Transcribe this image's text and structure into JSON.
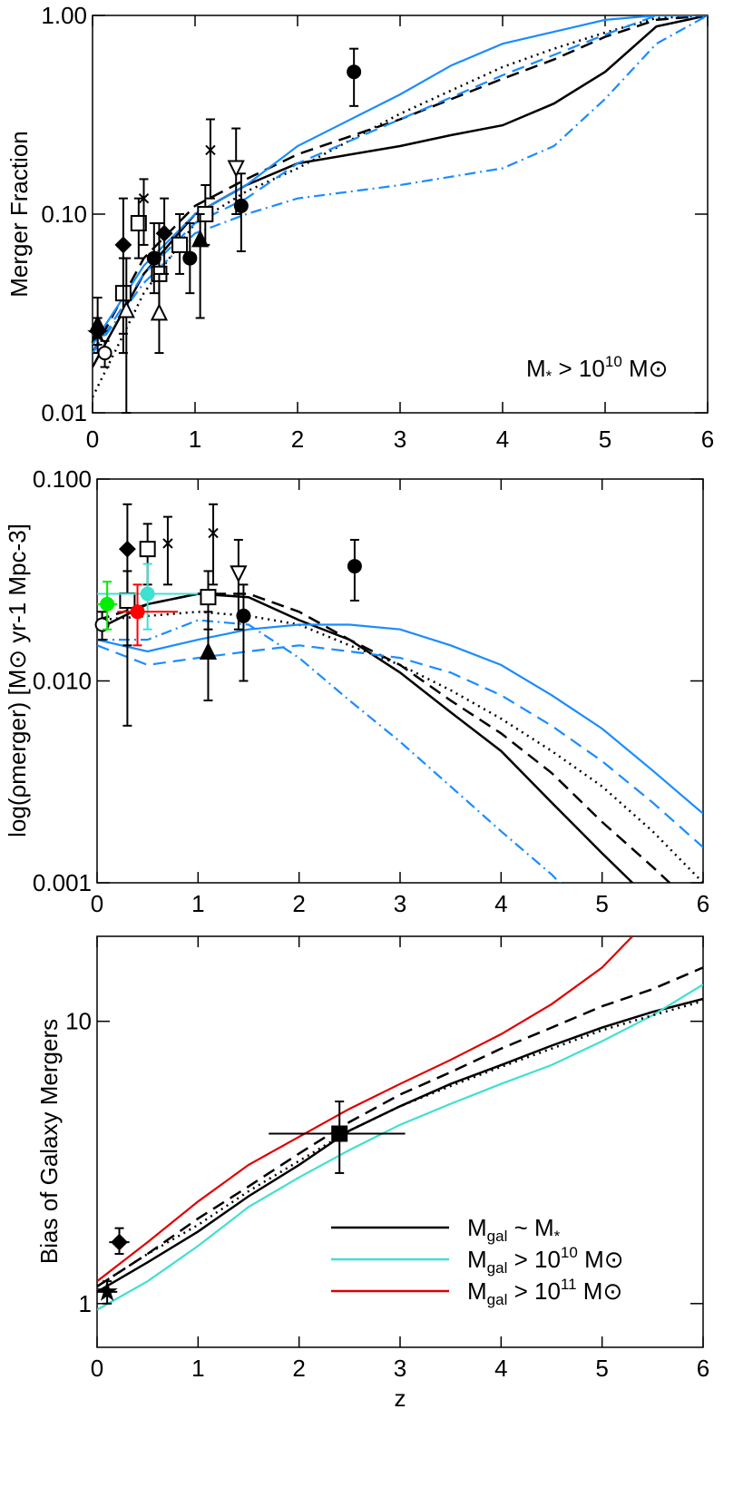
{
  "chart_data": [
    {
      "type": "line",
      "ylabel": "Merger Fraction",
      "log_y": true,
      "xlim": [
        0,
        6
      ],
      "xticks": [
        0,
        1,
        2,
        3,
        4,
        5,
        6
      ],
      "ylim": [
        0.01,
        1
      ],
      "yticks": [
        {
          "value": 1,
          "label": "1.00"
        },
        {
          "value": 0.1,
          "label": "0.10"
        },
        0.01
      ],
      "annotation": [
        "M",
        "*",
        " > 10",
        "10",
        " M",
        "⊙"
      ],
      "series": [
        {
          "color": "#000000",
          "style": "solid",
          "x": [
            0,
            0.5,
            1,
            1.5,
            2,
            3,
            3.5,
            4,
            4.5,
            5,
            5.5,
            6
          ],
          "values": [
            0.017,
            0.05,
            0.1,
            0.14,
            0.18,
            0.22,
            0.25,
            0.28,
            0.36,
            0.52,
            0.88,
            1.0
          ]
        },
        {
          "color": "#000000",
          "style": "dashed",
          "x": [
            0,
            0.5,
            1,
            1.5,
            2,
            3,
            4,
            4.5,
            5,
            5.5,
            6
          ],
          "values": [
            0.02,
            0.06,
            0.11,
            0.15,
            0.2,
            0.3,
            0.48,
            0.6,
            0.78,
            0.95,
            1.0
          ]
        },
        {
          "color": "#000000",
          "style": "dotted",
          "x": [
            0,
            0.5,
            1,
            1.5,
            2,
            3,
            4,
            4.5,
            5,
            5.5,
            6
          ],
          "values": [
            0.012,
            0.04,
            0.09,
            0.13,
            0.17,
            0.32,
            0.55,
            0.68,
            0.82,
            0.97,
            1.0
          ]
        },
        {
          "color": "#1a8cff",
          "style": "solid",
          "x": [
            0,
            0.5,
            1,
            1.5,
            2,
            3,
            3.5,
            4,
            5,
            5.5,
            6
          ],
          "values": [
            0.022,
            0.055,
            0.1,
            0.14,
            0.22,
            0.4,
            0.56,
            0.72,
            0.95,
            1.0,
            1.0
          ]
        },
        {
          "color": "#1a8cff",
          "style": "dashed",
          "x": [
            0,
            0.5,
            1,
            1.5,
            2,
            3,
            4,
            5,
            5.5,
            6
          ],
          "values": [
            0.02,
            0.05,
            0.09,
            0.12,
            0.18,
            0.3,
            0.5,
            0.8,
            1.0,
            1.0
          ]
        },
        {
          "color": "#1a8cff",
          "style": "dashdot",
          "x": [
            0,
            0.5,
            1,
            1.5,
            2,
            3,
            4,
            4.5,
            5,
            5.5,
            6
          ],
          "values": [
            0.02,
            0.045,
            0.08,
            0.1,
            0.12,
            0.14,
            0.17,
            0.22,
            0.38,
            0.72,
            1.0
          ]
        }
      ],
      "points": [
        {
          "x": 2.55,
          "y": 0.52,
          "ylo": 0.35,
          "yhi": 0.68,
          "marker": "filled-circle"
        },
        {
          "x": 1.45,
          "y": 0.11,
          "ylo": 0.065,
          "yhi": 0.16,
          "marker": "filled-circle"
        },
        {
          "x": 1.4,
          "y": 0.17,
          "ylo": 0.1,
          "yhi": 0.27,
          "marker": "down-triangle"
        },
        {
          "x": 1.15,
          "y": 0.21,
          "ylo": 0.12,
          "yhi": 0.3,
          "marker": "x"
        },
        {
          "x": 1.1,
          "y": 0.1,
          "ylo": 0.07,
          "yhi": 0.14,
          "marker": "square"
        },
        {
          "x": 1.05,
          "y": 0.075,
          "ylo": 0.03,
          "yhi": 0.1,
          "marker": "filled-triangle"
        },
        {
          "x": 0.95,
          "y": 0.06,
          "ylo": 0.04,
          "yhi": 0.09,
          "marker": "filled-circle"
        },
        {
          "x": 0.85,
          "y": 0.07,
          "ylo": 0.05,
          "yhi": 0.1,
          "marker": "square"
        },
        {
          "x": 0.65,
          "y": 0.05,
          "ylo": 0.03,
          "yhi": 0.09,
          "marker": "square"
        },
        {
          "x": 0.6,
          "y": 0.06,
          "ylo": 0.04,
          "yhi": 0.09,
          "marker": "filled-circle"
        },
        {
          "x": 0.45,
          "y": 0.09,
          "ylo": 0.06,
          "yhi": 0.12,
          "marker": "square"
        },
        {
          "x": 0.3,
          "y": 0.04,
          "ylo": 0.025,
          "yhi": 0.06,
          "marker": "square"
        },
        {
          "x": 0.3,
          "y": 0.07,
          "ylo": 0.02,
          "yhi": 0.12,
          "marker": "filled-diamond"
        },
        {
          "x": 0.33,
          "y": 0.033,
          "ylo": 0.01,
          "yhi": 0.06,
          "marker": "triangle"
        },
        {
          "x": 0.65,
          "y": 0.032,
          "ylo": 0.02,
          "yhi": 0.05,
          "marker": "triangle"
        },
        {
          "x": 0.7,
          "y": 0.08,
          "ylo": 0.05,
          "yhi": 0.12,
          "marker": "filled-diamond"
        },
        {
          "x": 0.5,
          "y": 0.12,
          "ylo": 0.07,
          "yhi": 0.15,
          "marker": "x"
        },
        {
          "x": 0.05,
          "y": 0.028,
          "ylo": 0.022,
          "yhi": 0.038,
          "marker": "filled-triangle"
        },
        {
          "x": 0.05,
          "y": 0.025,
          "ylo": 0.02,
          "yhi": 0.03,
          "marker": "star"
        },
        {
          "x": 0.12,
          "y": 0.02,
          "ylo": 0.017,
          "yhi": 0.023,
          "marker": "circle"
        }
      ]
    },
    {
      "type": "line",
      "ylabel": "log(ρmerger) [M⊙ yr-1 Mpc-3]",
      "log_y": true,
      "xlim": [
        0,
        6
      ],
      "xticks": [
        0,
        1,
        2,
        3,
        4,
        5,
        6
      ],
      "ylim": [
        0.001,
        0.1
      ],
      "yticks": [
        {
          "value": 0.1,
          "label": "0.100"
        },
        {
          "value": 0.01,
          "label": "0.010"
        },
        0.001
      ],
      "series": [
        {
          "color": "#000000",
          "style": "solid",
          "x": [
            0,
            0.5,
            1,
            1.5,
            2,
            2.5,
            3,
            3.5,
            4,
            4.5,
            5,
            5.5
          ],
          "values": [
            0.018,
            0.024,
            0.027,
            0.026,
            0.02,
            0.016,
            0.011,
            0.007,
            0.0045,
            0.0025,
            0.0014,
            0.0008
          ]
        },
        {
          "color": "#000000",
          "style": "dashed",
          "x": [
            0,
            0.5,
            1,
            1.5,
            2,
            2.5,
            3,
            3.5,
            4,
            4.5,
            5,
            5.5,
            6
          ],
          "values": [
            0.02,
            0.024,
            0.027,
            0.027,
            0.022,
            0.016,
            0.012,
            0.008,
            0.0055,
            0.0035,
            0.002,
            0.0012,
            0.0007
          ]
        },
        {
          "color": "#000000",
          "style": "dotted",
          "x": [
            0,
            1,
            1.5,
            2,
            2.5,
            3,
            3.5,
            4,
            4.5,
            5,
            5.5,
            6
          ],
          "values": [
            0.02,
            0.022,
            0.021,
            0.019,
            0.015,
            0.012,
            0.009,
            0.0065,
            0.0045,
            0.003,
            0.0018,
            0.001
          ]
        },
        {
          "color": "#1a8cff",
          "style": "solid",
          "x": [
            0,
            0.5,
            1,
            1.5,
            2,
            2.5,
            3,
            3.5,
            4,
            4.5,
            5,
            5.5,
            6
          ],
          "values": [
            0.016,
            0.014,
            0.016,
            0.018,
            0.019,
            0.019,
            0.018,
            0.015,
            0.012,
            0.0085,
            0.0058,
            0.0036,
            0.0022
          ]
        },
        {
          "color": "#1a8cff",
          "style": "dashed",
          "x": [
            0,
            0.5,
            1,
            1.5,
            2,
            2.5,
            3,
            3.5,
            4,
            4.5,
            5,
            5.5,
            6
          ],
          "values": [
            0.015,
            0.012,
            0.013,
            0.014,
            0.015,
            0.014,
            0.013,
            0.011,
            0.0085,
            0.006,
            0.004,
            0.0025,
            0.0015
          ]
        },
        {
          "color": "#1a8cff",
          "style": "dashdot",
          "x": [
            0,
            0.5,
            1,
            1.5,
            2,
            2.5,
            3,
            3.5,
            4,
            4.5,
            5
          ],
          "values": [
            0.016,
            0.016,
            0.02,
            0.019,
            0.013,
            0.008,
            0.005,
            0.003,
            0.0018,
            0.0011,
            0.0006
          ]
        }
      ],
      "points": [
        {
          "x": 2.55,
          "y": 0.037,
          "ylo": 0.025,
          "yhi": 0.05,
          "marker": "filled-circle"
        },
        {
          "x": 1.45,
          "y": 0.021,
          "ylo": 0.01,
          "yhi": 0.03,
          "marker": "filled-circle"
        },
        {
          "x": 1.4,
          "y": 0.034,
          "ylo": 0.018,
          "yhi": 0.05,
          "marker": "down-triangle"
        },
        {
          "x": 1.15,
          "y": 0.054,
          "ylo": 0.03,
          "yhi": 0.075,
          "marker": "x"
        },
        {
          "x": 1.1,
          "y": 0.026,
          "ylo": 0.018,
          "yhi": 0.035,
          "marker": "square"
        },
        {
          "x": 1.1,
          "y": 0.014,
          "ylo": 0.008,
          "yhi": 0.022,
          "marker": "filled-triangle"
        },
        {
          "x": 0.5,
          "y": 0.045,
          "ylo": 0.03,
          "yhi": 0.06,
          "marker": "square"
        },
        {
          "x": 0.3,
          "y": 0.045,
          "ylo": 0.006,
          "yhi": 0.075,
          "marker": "filled-diamond"
        },
        {
          "x": 0.7,
          "y": 0.048,
          "ylo": 0.03,
          "yhi": 0.065,
          "marker": "x"
        },
        {
          "x": 0.3,
          "y": 0.025,
          "ylo": 0.015,
          "yhi": 0.035,
          "marker": "square"
        },
        {
          "x": 0.05,
          "y": 0.019,
          "ylo": 0.016,
          "yhi": 0.022,
          "marker": "circle"
        },
        {
          "x": 0.5,
          "y": 0.027,
          "ylo": 0.018,
          "yhi": 0.038,
          "xlo": 0,
          "xhi": 1,
          "marker": "filled-circle",
          "color": "#40e0d0"
        },
        {
          "x": 0.1,
          "y": 0.024,
          "ylo": 0.018,
          "yhi": 0.031,
          "xlo": 0,
          "xhi": 0.2,
          "marker": "filled-circle",
          "color": "#00ee00"
        },
        {
          "x": 0.4,
          "y": 0.022,
          "ylo": 0.015,
          "yhi": 0.03,
          "xlo": 0.2,
          "xhi": 0.8,
          "marker": "filled-circle",
          "color": "#ff0000"
        }
      ]
    },
    {
      "type": "line",
      "ylabel": "Bias of Galaxy Mergers",
      "xlabel": "z",
      "log_y": true,
      "xlim": [
        0,
        6
      ],
      "xticks": [
        0,
        1,
        2,
        3,
        4,
        5,
        6
      ],
      "ylim": [
        0.7,
        20
      ],
      "yticks": [
        1,
        10
      ],
      "series": [
        {
          "name": [
            "M",
            "gal",
            " ~ M",
            "*"
          ],
          "color": "#000000",
          "style": "solid",
          "x": [
            0,
            0.5,
            1,
            1.5,
            2,
            2.5,
            3,
            3.5,
            4,
            4.5,
            5,
            5.5,
            6
          ],
          "values": [
            1.1,
            1.4,
            1.8,
            2.4,
            3.1,
            4.1,
            5,
            6,
            7,
            8.2,
            9.5,
            10.8,
            12
          ]
        },
        {
          "name": [
            "M",
            "gal",
            " > 10",
            "10",
            " M",
            "⊙"
          ],
          "color": "#40e0d0",
          "style": "solid",
          "x": [
            0,
            0.5,
            1,
            1.5,
            2,
            2.5,
            3,
            3.5,
            4,
            4.5,
            5,
            5.5,
            6
          ],
          "values": [
            0.95,
            1.2,
            1.6,
            2.2,
            2.8,
            3.5,
            4.3,
            5.1,
            6,
            7,
            8.5,
            10.5,
            13.5
          ]
        },
        {
          "name": [
            "M",
            "gal",
            " > 10",
            "11",
            " M",
            "⊙"
          ],
          "color": "#e00000",
          "style": "solid",
          "x": [
            0,
            0.5,
            1,
            1.5,
            2,
            2.5,
            3,
            3.5,
            4,
            4.5,
            5,
            5.3
          ],
          "values": [
            1.2,
            1.65,
            2.3,
            3.1,
            3.9,
            4.9,
            6,
            7.3,
            9,
            11.5,
            15.5,
            20
          ]
        },
        {
          "color": "#000000",
          "style": "dashed",
          "x": [
            0,
            0.5,
            1,
            1.5,
            2,
            2.5,
            3,
            3.5,
            4,
            4.5,
            5,
            5.5,
            6
          ],
          "values": [
            1.15,
            1.5,
            2,
            2.6,
            3.4,
            4.4,
            5.5,
            6.6,
            8,
            9.5,
            11.3,
            13,
            15.5
          ]
        },
        {
          "color": "#000000",
          "style": "dotted",
          "x": [
            0,
            0.5,
            1,
            1.5,
            2,
            2.5,
            3,
            3.5,
            4,
            4.5,
            5,
            5.5,
            6
          ],
          "values": [
            1.15,
            1.5,
            1.9,
            2.5,
            3.2,
            4.1,
            5,
            5.9,
            6.9,
            8,
            9.3,
            10.5,
            11.8
          ]
        }
      ],
      "points": [
        {
          "x": 2.4,
          "y": 4.0,
          "ylo": 2.9,
          "yhi": 5.2,
          "xlo": 1.7,
          "xhi": 3.05,
          "marker": "filled-square"
        },
        {
          "x": 0.22,
          "y": 1.65,
          "ylo": 1.5,
          "yhi": 1.85,
          "xlo": 0.12,
          "xhi": 0.32,
          "marker": "filled-diamond"
        },
        {
          "x": 0.1,
          "y": 1.1,
          "ylo": 1.0,
          "yhi": 1.2,
          "xlo": 0,
          "xhi": 0.2,
          "marker": "star"
        }
      ]
    }
  ]
}
